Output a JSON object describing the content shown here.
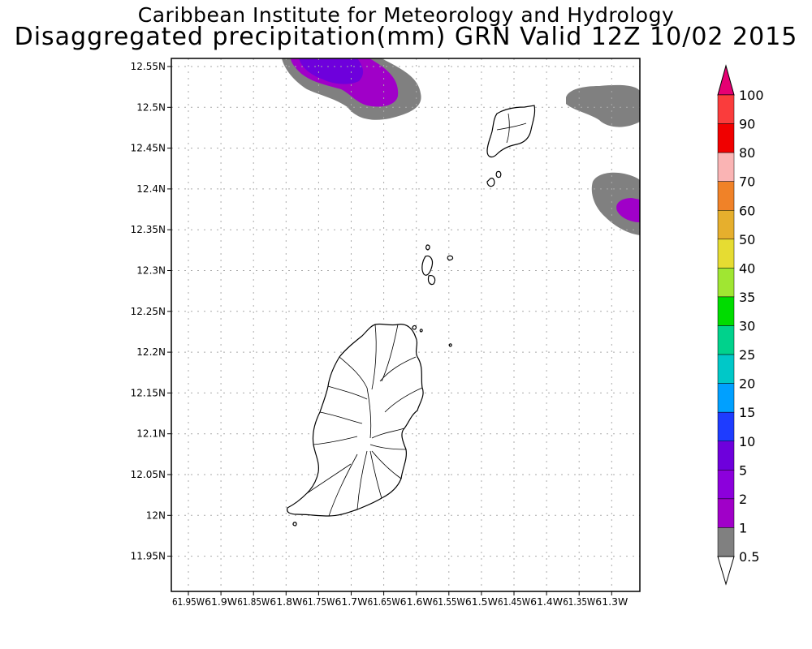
{
  "header": {
    "title": "Caribbean Institute for Meteorology and Hydrology",
    "subtitle": "Disaggregated precipitation(mm) GRN Valid 12Z 10/02 2015"
  },
  "map": {
    "lat_ticks": [
      "12.55N",
      "12.5N",
      "12.45N",
      "12.4N",
      "12.35N",
      "12.3N",
      "12.25N",
      "12.2N",
      "12.15N",
      "12.1N",
      "12.05N",
      "12N",
      "11.95N"
    ],
    "lon_ticks": [
      "61.95W",
      "61.9W",
      "61.85W",
      "61.8W",
      "61.75W",
      "61.7W",
      "61.65W",
      "61.6W",
      "61.55W",
      "61.5W",
      "61.45W",
      "61.4W",
      "61.35W",
      "61.3W"
    ],
    "grid": true
  },
  "legend": {
    "items": [
      {
        "label": "100",
        "color": "#e60073"
      },
      {
        "label": "90",
        "color": "#fa3c3c"
      },
      {
        "label": "80",
        "color": "#f00000"
      },
      {
        "label": "70",
        "color": "#fab4b4"
      },
      {
        "label": "60",
        "color": "#f08228"
      },
      {
        "label": "50",
        "color": "#e6af2d"
      },
      {
        "label": "40",
        "color": "#e6dc32"
      },
      {
        "label": "35",
        "color": "#a0e632"
      },
      {
        "label": "30",
        "color": "#00dc00"
      },
      {
        "label": "25",
        "color": "#00d28c"
      },
      {
        "label": "20",
        "color": "#00c8c8"
      },
      {
        "label": "15",
        "color": "#00a0ff"
      },
      {
        "label": "10",
        "color": "#1e3cff"
      },
      {
        "label": "5",
        "color": "#6e00dc"
      },
      {
        "label": "2",
        "color": "#8c00dc"
      },
      {
        "label": "1",
        "color": "#a000c8"
      },
      {
        "label": "0.5",
        "color": "#808080"
      }
    ],
    "top_cap_color": "#e60073"
  },
  "precip_areas": [
    {
      "name": "north-cell",
      "max_class": "5"
    },
    {
      "name": "east-cell",
      "max_class": "2"
    },
    {
      "name": "northeast-cell",
      "max_class": "0.5"
    }
  ]
}
